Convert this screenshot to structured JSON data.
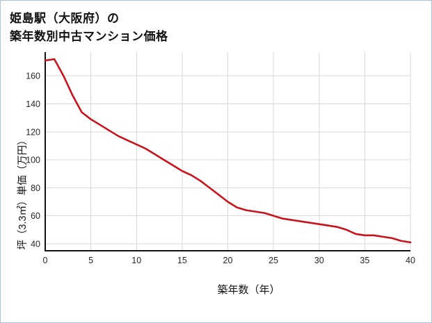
{
  "title": {
    "line1": "姫島駅（大阪府）の",
    "line2": "築年数別中古マンション価格"
  },
  "chart_data": {
    "type": "line",
    "title": "姫島駅（大阪府）の築年数別中古マンション価格",
    "xlabel": "築年数（年）",
    "ylabel": "坪（3.3㎡）単価（万円）",
    "x": [
      0,
      1,
      2,
      3,
      4,
      5,
      6,
      7,
      8,
      9,
      10,
      11,
      12,
      13,
      14,
      15,
      16,
      17,
      18,
      19,
      20,
      21,
      22,
      23,
      24,
      25,
      26,
      27,
      28,
      29,
      30,
      31,
      32,
      33,
      34,
      35,
      36,
      37,
      38,
      39,
      40
    ],
    "values": [
      171,
      172,
      160,
      146,
      134,
      129,
      125,
      121,
      117,
      114,
      111,
      108,
      104,
      100,
      96,
      92,
      89,
      85,
      80,
      75,
      70,
      66,
      64,
      63,
      62,
      60,
      58,
      57,
      56,
      55,
      54,
      53,
      52,
      50,
      47,
      46,
      46,
      45,
      44,
      42,
      41
    ],
    "xlim": [
      0,
      40
    ],
    "ylim": [
      35,
      177
    ],
    "xticks": [
      0,
      5,
      10,
      15,
      20,
      25,
      30,
      35,
      40
    ],
    "yticks": [
      40,
      60,
      80,
      100,
      120,
      140,
      160
    ],
    "line_color": "#c9121a",
    "grid_color": "#d9d9d9",
    "axis_color": "#111111",
    "legend": "none",
    "grid": true
  }
}
